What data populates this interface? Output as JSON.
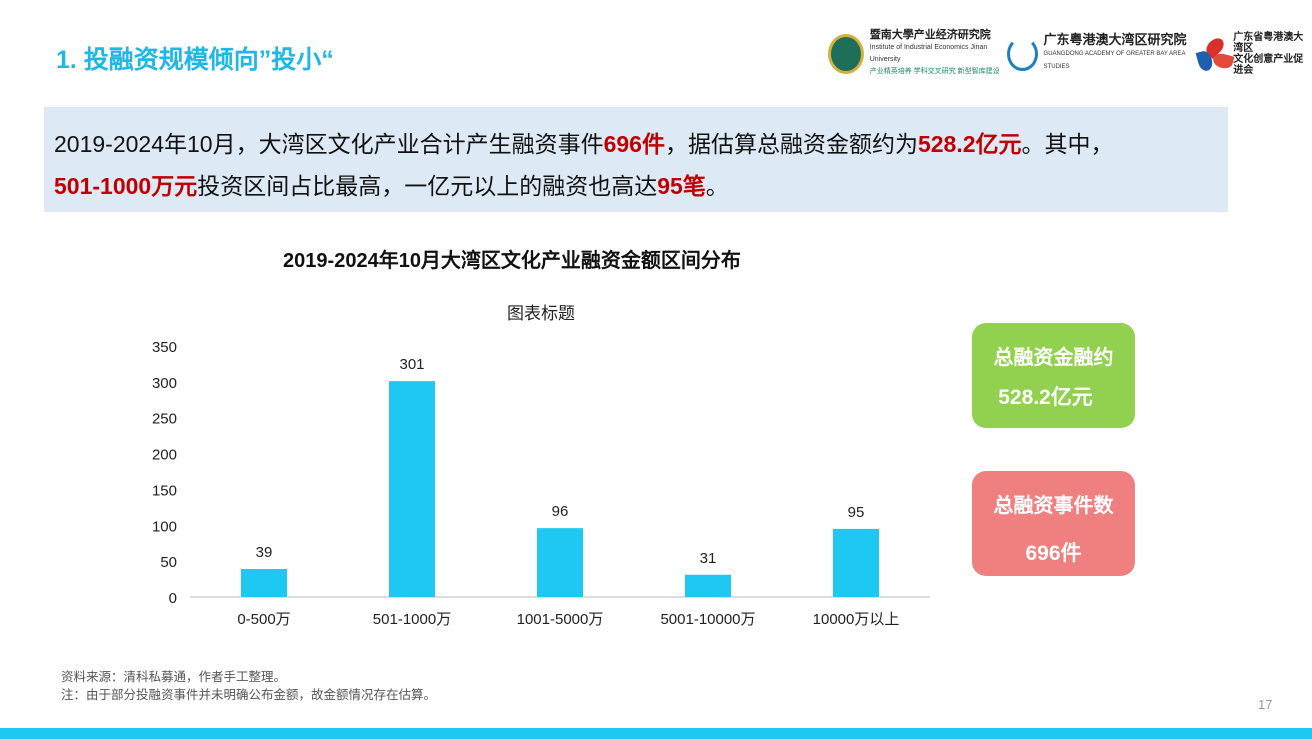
{
  "title": "1. 投融资规模倾向”投小“",
  "logos": {
    "jnu": {
      "name": "暨南大學产业经济研究院",
      "en": "Institute of Industrial Economics Jinan University",
      "slogan": "产业精英培养  学科交叉研究  新型智库建设"
    },
    "gba": {
      "name": "广东粤港澳大湾区研究院",
      "en": "GUANGDONG ACADEMY OF GREATER BAY AREA STUDIES"
    },
    "assoc": {
      "name1": "广东省粤港澳大湾区",
      "name2": "文化创意产业促进会"
    }
  },
  "summary": {
    "p1": "2019-2024年10月，大湾区文化产业合计产生融资事件",
    "v1": "696件",
    "p2": "，据估算总融资金额约为",
    "v2": "528.2亿元",
    "p3": "。其中，",
    "v3": "501-1000万元",
    "p4": "投资区间占比最高，一亿元以上的融资也高达",
    "v4": "95笔",
    "p5": "。"
  },
  "chart_data": {
    "type": "bar",
    "title": "2019-2024年10月大湾区文化产业融资金额区间分布",
    "subtitle": "图表标题",
    "categories": [
      "0-500万",
      "501-1000万",
      "1001-5000万",
      "5001-10000万",
      "10000万以上"
    ],
    "values": [
      39,
      301,
      96,
      31,
      95
    ],
    "ylim": [
      0,
      350
    ],
    "yticks": [
      "0",
      "50",
      "100",
      "150",
      "200",
      "250",
      "300",
      "350"
    ],
    "bar_color": "#1fc8f0",
    "grid": false
  },
  "cards": [
    {
      "label": "总融资金融约",
      "value": "528.2亿元",
      "color": "#92d050"
    },
    {
      "label": "总融资事件数",
      "value": "696件",
      "color": "#f08080"
    }
  ],
  "notes": [
    "资料来源：清科私募通，作者手工整理。",
    "注：由于部分投融资事件并未明确公布金额，故金额情况存在估算。"
  ],
  "page_number": "17"
}
